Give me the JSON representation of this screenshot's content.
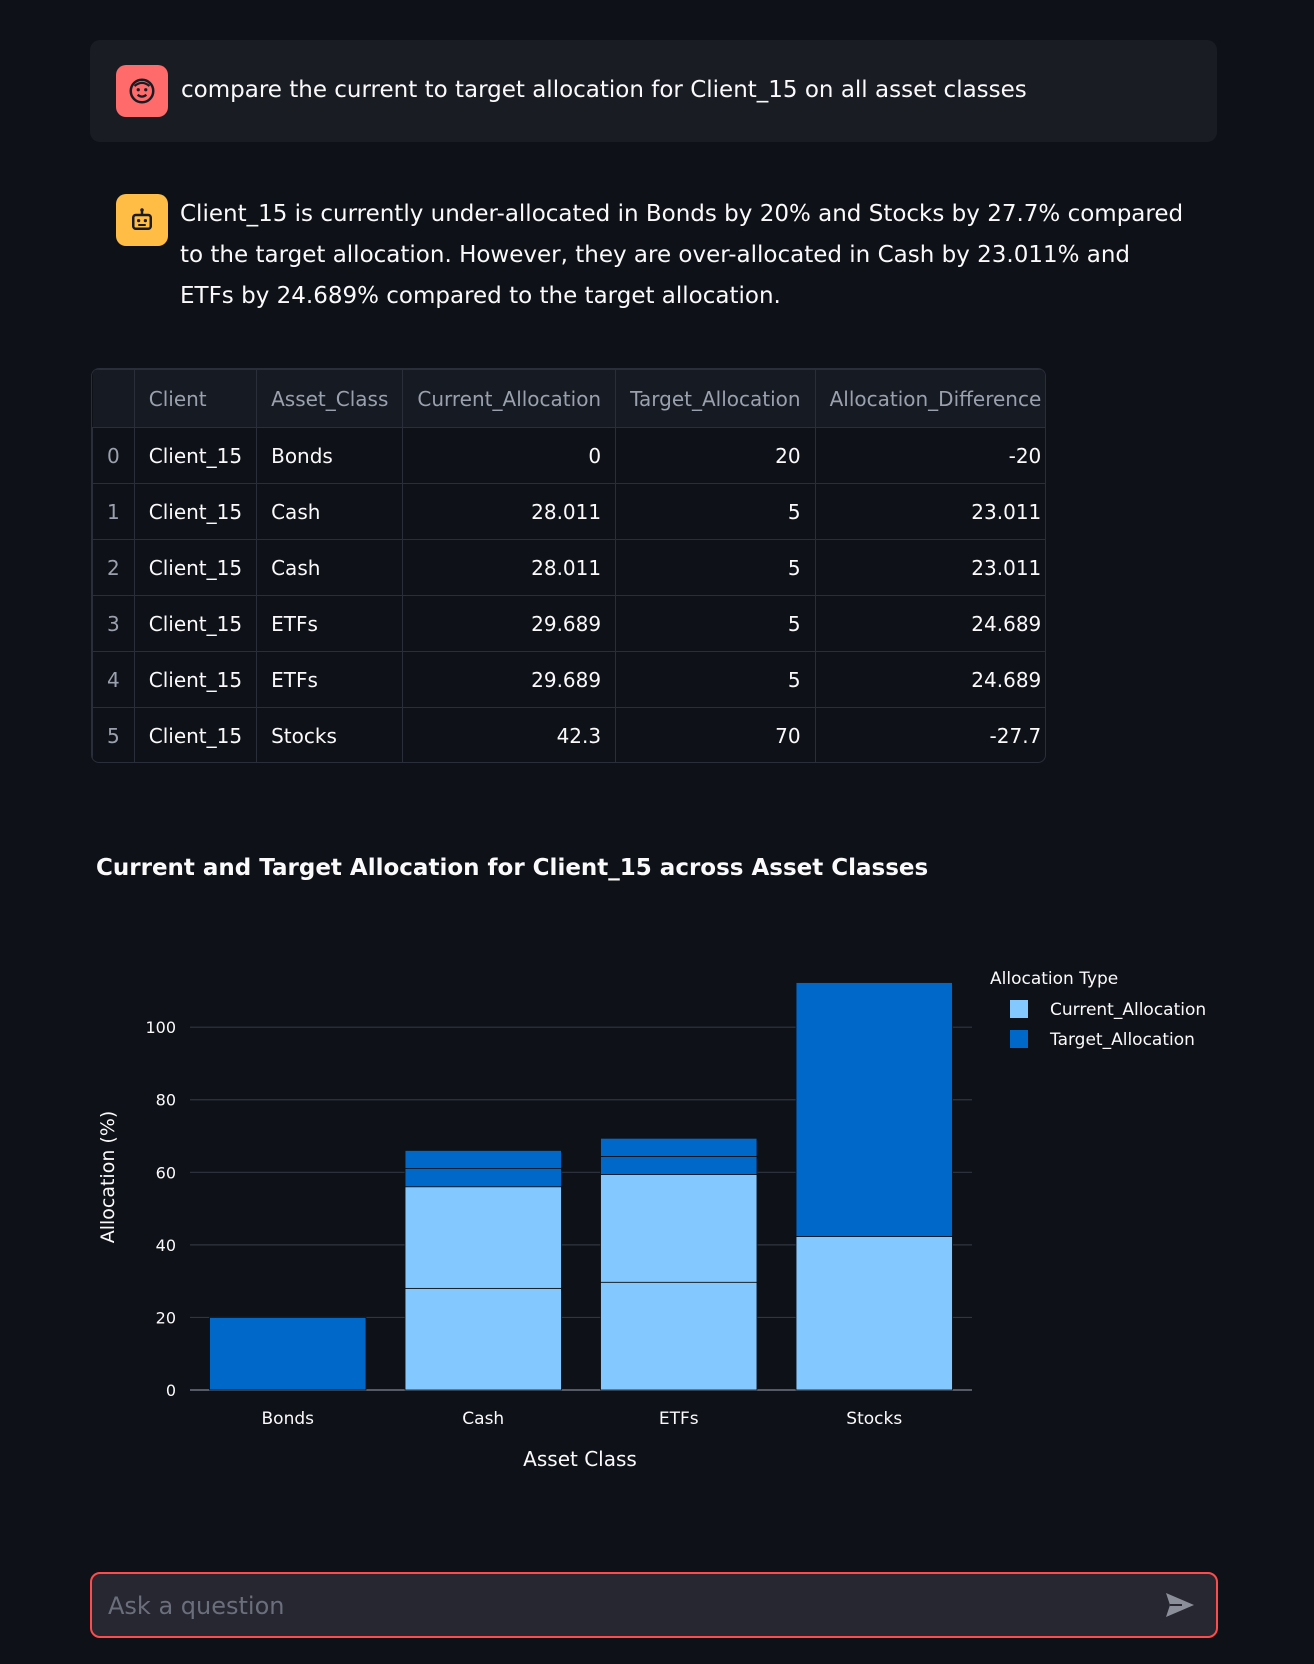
{
  "chat": {
    "user_message": "compare the current to target allocation for Client_15 on all asset classes",
    "assistant_message": "Client_15 is currently under-allocated in Bonds by 20% and Stocks by 27.7% compared to the target allocation. However, they are over-allocated in Cash by 23.011% and ETFs by 24.689% compared to the target allocation.",
    "user_avatar_icon": "user-face-icon",
    "assistant_avatar_icon": "robot-icon",
    "user_avatar_color": "#ff6b6b",
    "assistant_avatar_color": "#ffbd45"
  },
  "table": {
    "columns": [
      "",
      "Client",
      "Asset_Class",
      "Current_Allocation",
      "Target_Allocation",
      "Allocation_Difference"
    ],
    "rows": [
      [
        "0",
        "Client_15",
        "Bonds",
        "0",
        "20",
        "-20"
      ],
      [
        "1",
        "Client_15",
        "Cash",
        "28.011",
        "5",
        "23.011"
      ],
      [
        "2",
        "Client_15",
        "Cash",
        "28.011",
        "5",
        "23.011"
      ],
      [
        "3",
        "Client_15",
        "ETFs",
        "29.689",
        "5",
        "24.689"
      ],
      [
        "4",
        "Client_15",
        "ETFs",
        "29.689",
        "5",
        "24.689"
      ],
      [
        "5",
        "Client_15",
        "Stocks",
        "42.3",
        "70",
        "-27.7"
      ]
    ]
  },
  "chart_data": {
    "type": "bar",
    "stacked": true,
    "title": "Current and Target Allocation for Client_15 across Asset Classes",
    "xlabel": "Asset Class",
    "ylabel": "Allocation (%)",
    "categories": [
      "Bonds",
      "Cash",
      "ETFs",
      "Stocks"
    ],
    "series": [
      {
        "name": "Current_Allocation",
        "color": "#83c9ff",
        "segments": [
          [
            0
          ],
          [
            28.011,
            28.011
          ],
          [
            29.689,
            29.689
          ],
          [
            42.3
          ]
        ]
      },
      {
        "name": "Target_Allocation",
        "color": "#0068c9",
        "segments": [
          [
            20
          ],
          [
            5,
            5
          ],
          [
            5,
            5
          ],
          [
            70
          ]
        ]
      }
    ],
    "ylim": [
      0,
      113
    ],
    "yticks": [
      0,
      20,
      40,
      60,
      80,
      100
    ],
    "grid": true,
    "legend_title": "Allocation Type",
    "legend_position": "top-right"
  },
  "input": {
    "placeholder": "Ask a question",
    "value": ""
  },
  "colors": {
    "background": "#0e1117",
    "accent": "#ff4b4b"
  }
}
